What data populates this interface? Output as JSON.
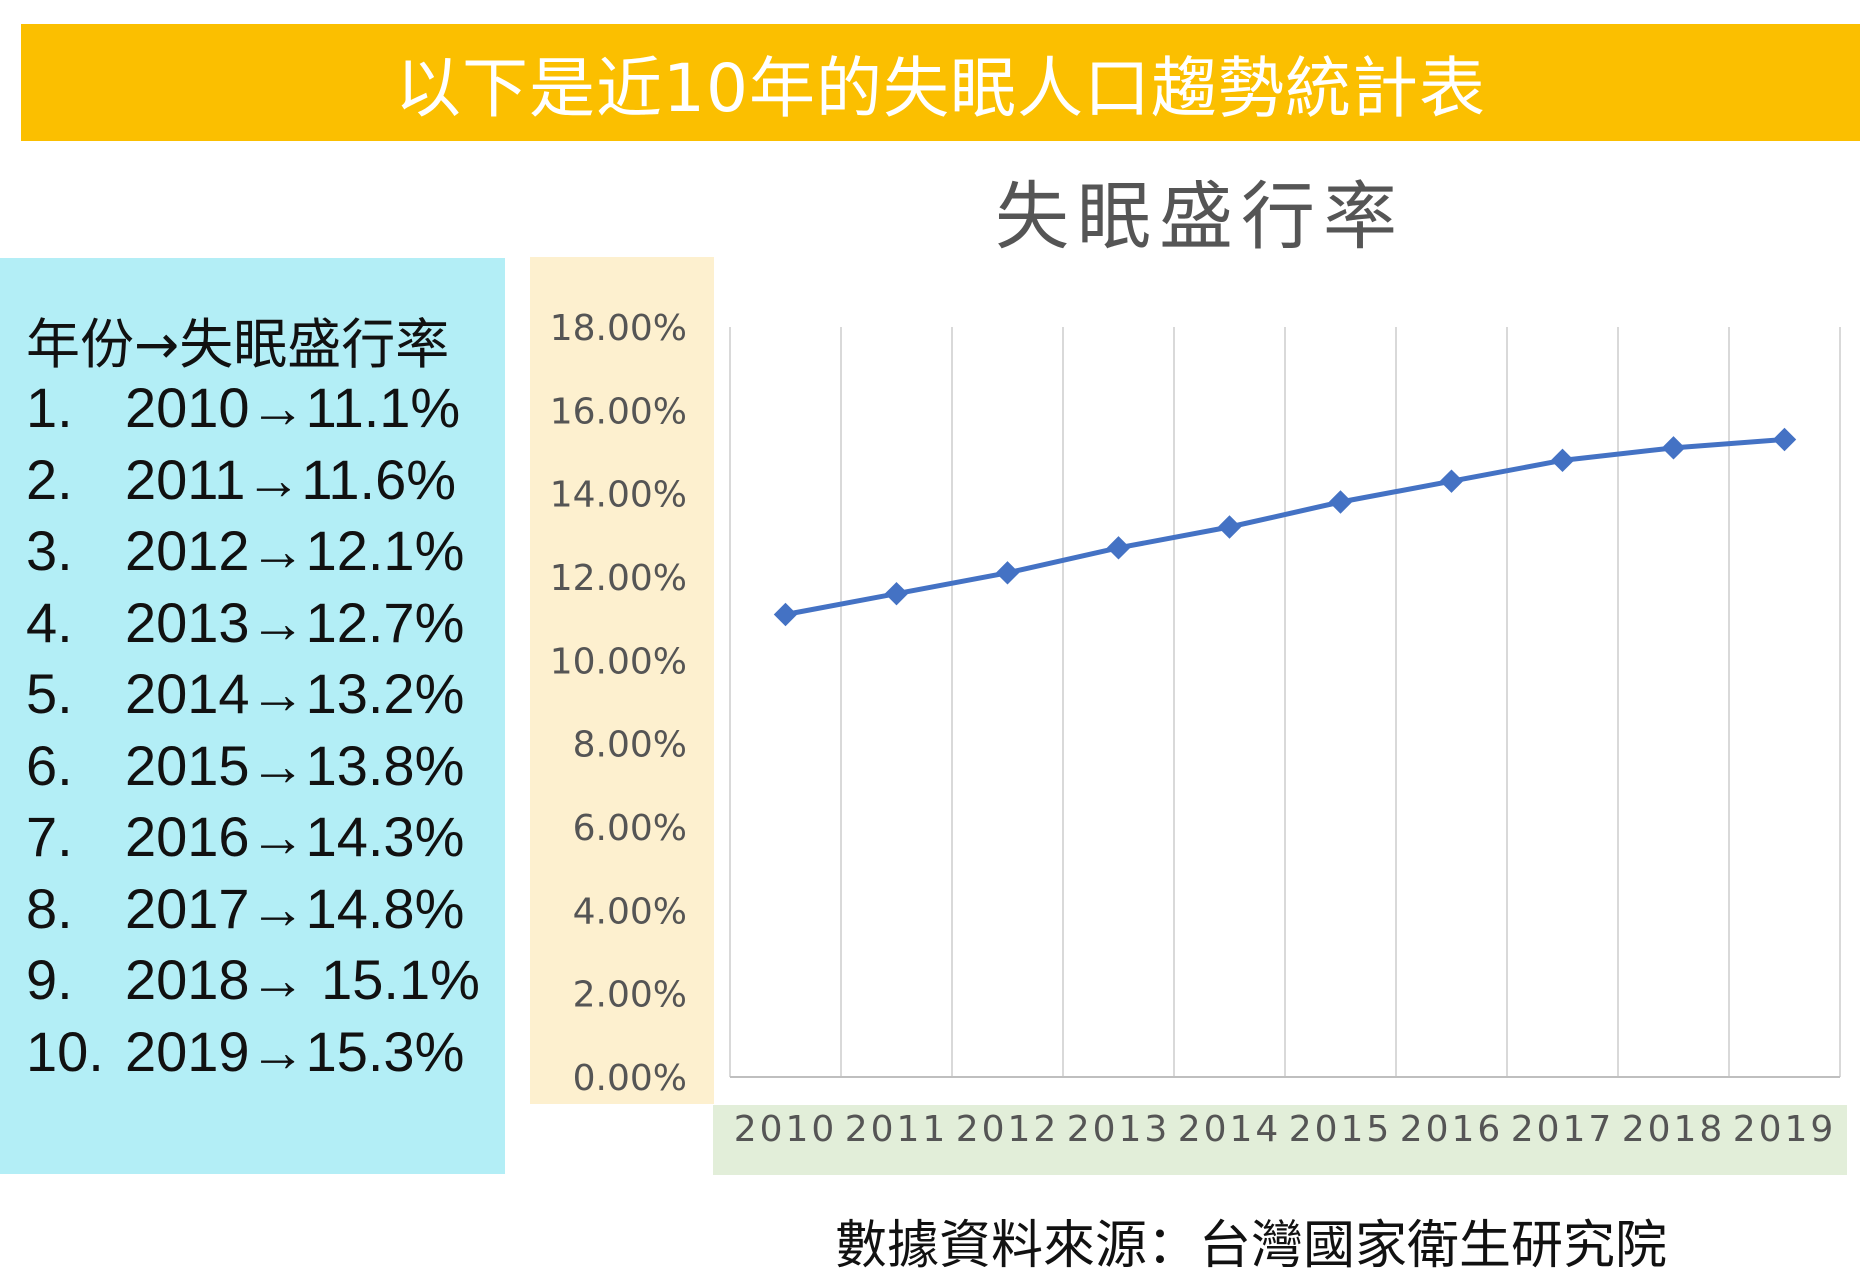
{
  "banner": {
    "title": "以下是近10年的失眠人口趨勢統計表"
  },
  "side_panel": {
    "heading": "年份→失眠盛行率",
    "items": [
      {
        "num": "1.",
        "text": "2010→11.1%"
      },
      {
        "num": "2.",
        "text": "2011→11.6%"
      },
      {
        "num": "3.",
        "text": "2012→12.1%"
      },
      {
        "num": "4.",
        "text": "2013→12.7%"
      },
      {
        "num": "5.",
        "text": "2014→13.2%"
      },
      {
        "num": "6.",
        "text": "2015→13.8%"
      },
      {
        "num": "7.",
        "text": "2016→14.3%"
      },
      {
        "num": "8.",
        "text": "2017→14.8%"
      },
      {
        "num": "9.",
        "text": "2018→ 15.1%"
      },
      {
        "num": "10.",
        "text": "2019→15.3%"
      }
    ]
  },
  "source": "數據資料來源：台灣國家衛生研究院",
  "colors": {
    "banner": "#fbbf00",
    "side_panel": "#b3eef6",
    "y_axis_band": "#fdf0cf",
    "x_axis_band": "#e2eed9",
    "line": "#4472c4",
    "grid": "#d9d9d9"
  },
  "chart_data": {
    "type": "line",
    "title": "失眠盛行率",
    "categories": [
      "2010",
      "2011",
      "2012",
      "2013",
      "2014",
      "2015",
      "2016",
      "2017",
      "2018",
      "2019"
    ],
    "series": [
      {
        "values": [
          11.1,
          11.6,
          12.1,
          12.7,
          13.2,
          13.8,
          14.3,
          14.8,
          15.1,
          15.3
        ]
      }
    ],
    "y_ticks": [
      "0.00%",
      "2.00%",
      "4.00%",
      "6.00%",
      "8.00%",
      "10.00%",
      "12.00%",
      "14.00%",
      "16.00%",
      "18.00%"
    ],
    "ylim": [
      0,
      18
    ],
    "marker": "diamond",
    "grid": "vertical",
    "legend": "none"
  }
}
